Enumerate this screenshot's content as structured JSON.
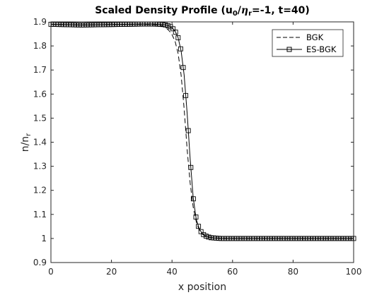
{
  "chart_data": {
    "type": "line",
    "title": {
      "main": "Scaled Density Profile (u",
      "sub1": "0",
      "mid": "/",
      "eta": "η",
      "sub2": "r",
      "tail": "=-1, t=40)"
    },
    "xlabel": "x position",
    "ylabel": {
      "main": "n/n",
      "sub": "r"
    },
    "xlim": [
      0,
      100
    ],
    "ylim": [
      0.9,
      1.9
    ],
    "xticks": [
      "0",
      "20",
      "40",
      "60",
      "80",
      "100"
    ],
    "yticks": [
      "0.9",
      "1",
      "1.1",
      "1.2",
      "1.3",
      "1.4",
      "1.5",
      "1.6",
      "1.7",
      "1.8",
      "1.9"
    ],
    "grid": false,
    "legend_position": "top-right",
    "series": [
      {
        "name": "BGK",
        "style": "dashed",
        "marker": "none",
        "x": [
          0,
          10,
          20,
          30,
          34,
          36,
          37,
          38,
          39,
          40,
          41,
          42,
          43,
          44,
          45,
          46,
          47,
          48,
          49,
          50,
          51,
          52,
          53,
          54,
          55,
          56,
          57,
          58,
          60,
          70,
          80,
          90,
          100
        ],
        "y": [
          1.89,
          1.887,
          1.889,
          1.89,
          1.889,
          1.886,
          1.882,
          1.875,
          1.864,
          1.847,
          1.82,
          1.77,
          1.68,
          1.54,
          1.37,
          1.23,
          1.13,
          1.07,
          1.035,
          1.018,
          1.01,
          1.006,
          1.004,
          1.003,
          1.002,
          1.001,
          1.001,
          1.0,
          1.0,
          1.0,
          1.0,
          1.0,
          1.0
        ]
      },
      {
        "name": "ES-BGK",
        "style": "solid",
        "marker": "square",
        "x": [
          0,
          10,
          20,
          30,
          34,
          36,
          37,
          38,
          39,
          40,
          41,
          42,
          43,
          44,
          45,
          46,
          47,
          48,
          49,
          50,
          51,
          52,
          53,
          54,
          55,
          56,
          57,
          58,
          60,
          70,
          80,
          90,
          100
        ],
        "y": [
          1.89,
          1.887,
          1.889,
          1.891,
          1.891,
          1.89,
          1.889,
          1.887,
          1.883,
          1.876,
          1.862,
          1.835,
          1.78,
          1.68,
          1.52,
          1.33,
          1.17,
          1.08,
          1.04,
          1.02,
          1.011,
          1.006,
          1.003,
          1.002,
          1.001,
          1.0,
          1.0,
          1.0,
          1.0,
          1.0,
          1.0,
          1.0,
          1.0
        ]
      }
    ]
  }
}
